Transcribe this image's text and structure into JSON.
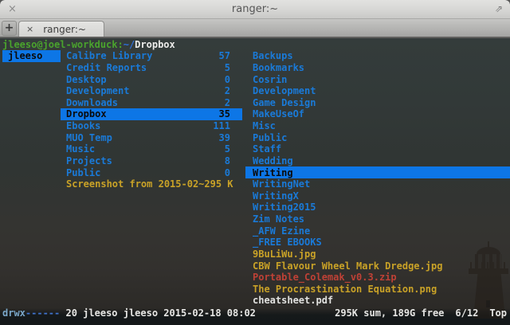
{
  "window": {
    "title": "ranger:~"
  },
  "icons": {
    "close": "×",
    "resize": "⇗",
    "tab_close": "×",
    "new_tab": "+"
  },
  "tabs": {
    "active_tab": {
      "title": "ranger:~"
    }
  },
  "terminal": {
    "prompt": {
      "user_host": "jleeso@joel-workduck:",
      "path_prefix": "~/",
      "path_name": "Dropbox"
    },
    "parent_column": {
      "items": [
        {
          "name": "jleeso",
          "style": "dir",
          "selected": true
        }
      ]
    },
    "main_column": {
      "items": [
        {
          "name": "Calibre Library",
          "count": "57",
          "style": "dir"
        },
        {
          "name": "Credit Reports",
          "count": "5",
          "style": "dir"
        },
        {
          "name": "Desktop",
          "count": "0",
          "style": "dir"
        },
        {
          "name": "Development",
          "count": "2",
          "style": "dir"
        },
        {
          "name": "Downloads",
          "count": "2",
          "style": "dir"
        },
        {
          "name": "Dropbox",
          "count": "35",
          "style": "dir",
          "selected": true
        },
        {
          "name": "Ebooks",
          "count": "111",
          "style": "dir"
        },
        {
          "name": "MUO Temp",
          "count": "39",
          "style": "dir"
        },
        {
          "name": "Music",
          "count": "5",
          "style": "dir"
        },
        {
          "name": "Projects",
          "count": "8",
          "style": "dir"
        },
        {
          "name": "Public",
          "count": "0",
          "style": "dir"
        },
        {
          "name": "Screenshot from 2015-02~",
          "count": "295 K",
          "style": "image"
        }
      ]
    },
    "preview_column": {
      "items": [
        {
          "name": "Backups",
          "style": "dir"
        },
        {
          "name": "Bookmarks",
          "style": "dir"
        },
        {
          "name": "Cosrin",
          "style": "dir"
        },
        {
          "name": "Development",
          "style": "dir"
        },
        {
          "name": "Game Design",
          "style": "dir"
        },
        {
          "name": "MakeUseOf",
          "style": "dir"
        },
        {
          "name": "Misc",
          "style": "dir"
        },
        {
          "name": "Public",
          "style": "dir"
        },
        {
          "name": "Staff",
          "style": "dir"
        },
        {
          "name": "Wedding",
          "style": "dir"
        },
        {
          "name": "Writing",
          "style": "dir",
          "selected": true
        },
        {
          "name": "WritingNet",
          "style": "dir"
        },
        {
          "name": "WritingX",
          "style": "dir"
        },
        {
          "name": "Writing2015",
          "style": "dir"
        },
        {
          "name": "Zim Notes",
          "style": "dir"
        },
        {
          "name": "_AFW Ezine",
          "style": "dir"
        },
        {
          "name": "_FREE EBOOKS",
          "style": "dir"
        },
        {
          "name": "9BuLiWu.jpg",
          "style": "image"
        },
        {
          "name": "CBW Flavour Wheel Mark Dredge.jpg",
          "style": "image"
        },
        {
          "name": "Portable_Colemak_v0.3.zip",
          "style": "archive"
        },
        {
          "name": "The Procrastination Equation.png",
          "style": "image"
        },
        {
          "name": "cheatsheet.pdf",
          "style": "plain"
        }
      ]
    },
    "statusbar": {
      "permissions": "drwx",
      "permission_dashes": "------",
      "details": " 20 jleeso jleeso 2015-02-18 08:02",
      "sum_free": "295K sum, 189G free",
      "position": "6/12",
      "scroll": "Top"
    }
  },
  "colors": {
    "selection_blue": "#0d76e6",
    "directory_blue": "#1a7ad8",
    "image_yellow": "#c9a227",
    "archive_red": "#bf4136",
    "prompt_green": "#4aa32d",
    "text_white": "#e6e6e4"
  }
}
